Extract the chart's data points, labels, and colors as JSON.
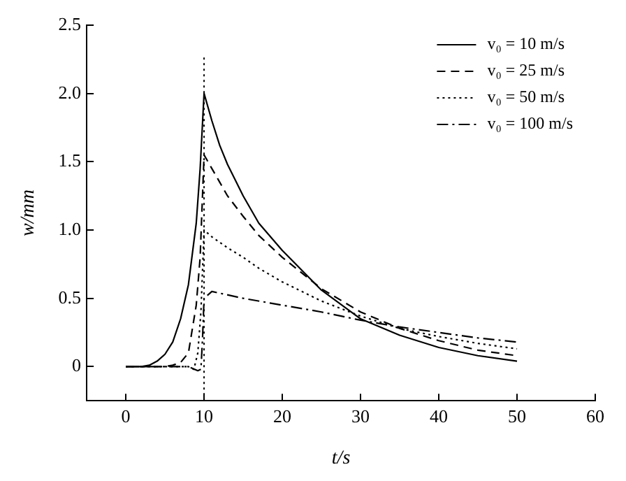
{
  "chart_data": {
    "type": "line",
    "xlabel": "t/s",
    "ylabel": "w/mm",
    "xlim": [
      -5,
      60
    ],
    "xticks": [
      0,
      10,
      20,
      30,
      40,
      50,
      60
    ],
    "ylim": [
      -0.25,
      2.5
    ],
    "yticks": [
      0,
      {
        "value": 0.5,
        "label": "0.5"
      },
      {
        "value": 1,
        "label": "1.0"
      },
      {
        "value": 1.5,
        "label": "1.5"
      },
      {
        "value": 2,
        "label": "2.0"
      },
      {
        "value": 2.5,
        "label": "2.5"
      }
    ],
    "grid": false,
    "legend": "top right",
    "marker": "none",
    "ref_lines": [
      {
        "axis": "x",
        "value": 10,
        "label": null,
        "line_style": "dotted"
      }
    ],
    "series": [
      {
        "name": "v₀ = 10 m/s",
        "color": "#000000",
        "line_style": "solid",
        "x": [
          0,
          2,
          3,
          4,
          5,
          6,
          7,
          8,
          9,
          9.5,
          10,
          11,
          12,
          13,
          15,
          17,
          20,
          25,
          30,
          35,
          40,
          45,
          50
        ],
        "values": [
          0,
          0,
          0.01,
          0.04,
          0.09,
          0.18,
          0.35,
          0.6,
          1.05,
          1.45,
          2.0,
          1.8,
          1.62,
          1.48,
          1.25,
          1.05,
          0.85,
          0.56,
          0.35,
          0.23,
          0.14,
          0.08,
          0.04
        ]
      },
      {
        "name": "v₀ = 25 m/s",
        "color": "#000000",
        "line_style": "dashed",
        "x": [
          0,
          5,
          6,
          7,
          8,
          9,
          9.5,
          10,
          11,
          12,
          13,
          15,
          17,
          20,
          25,
          30,
          35,
          40,
          45,
          50
        ],
        "values": [
          0,
          0,
          0.01,
          0.03,
          0.1,
          0.45,
          0.8,
          1.55,
          1.45,
          1.35,
          1.25,
          1.1,
          0.96,
          0.8,
          0.57,
          0.4,
          0.28,
          0.19,
          0.12,
          0.08
        ]
      },
      {
        "name": "v₀ = 50 m/s",
        "color": "#000000",
        "line_style": "dotted",
        "x": [
          0,
          6,
          7,
          8,
          8.7,
          9.2,
          9.6,
          10,
          11,
          13,
          15,
          17,
          20,
          25,
          30,
          35,
          40,
          45,
          50
        ],
        "values": [
          0,
          0,
          0,
          0,
          -0.02,
          0.1,
          0.4,
          1.0,
          0.95,
          0.87,
          0.8,
          0.72,
          0.62,
          0.48,
          0.37,
          0.28,
          0.22,
          0.17,
          0.13
        ]
      },
      {
        "name": "v₀ = 100 m/s",
        "color": "#000000",
        "line_style": "dashdot",
        "x": [
          0,
          6,
          8,
          9.2,
          9.6,
          9.8,
          10,
          11,
          15,
          20,
          25,
          30,
          35,
          40,
          45,
          50
        ],
        "values": [
          0,
          0,
          0,
          -0.03,
          -0.02,
          0.2,
          0.5,
          0.55,
          0.5,
          0.45,
          0.4,
          0.34,
          0.29,
          0.25,
          0.21,
          0.18
        ]
      }
    ]
  }
}
